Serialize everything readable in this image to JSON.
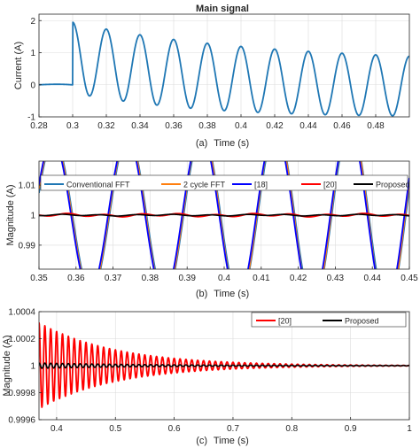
{
  "chart_data": [
    {
      "type": "line",
      "title": "Main signal",
      "xlabel": "Time (s)",
      "ylabel": "Current (A)",
      "caption": "(a)",
      "xlim": [
        0.28,
        0.5
      ],
      "ylim": [
        -1,
        2.2
      ],
      "xticks": [
        "0.28",
        "0.3",
        "0.32",
        "0.34",
        "0.36",
        "0.38",
        "0.4",
        "0.42",
        "0.44",
        "0.46",
        "0.48"
      ],
      "yticks": [
        "2",
        "1",
        "0",
        "-1"
      ],
      "grid": true,
      "series": [
        {
          "color": "#1f77b4",
          "pre_fault": {
            "x_start": 0.28,
            "x_end": 0.3,
            "offset": 0.05,
            "amplitude": 0.1
          },
          "post_fault": {
            "x_start": 0.3,
            "x_end": 0.5,
            "frequency_hz": 50,
            "phase_deg": 0,
            "dc_offset_initial": 1.0,
            "dc_time_constant_s": 0.09,
            "amplitude_initial": 1.1,
            "amplitude_final": 0.93
          }
        }
      ]
    },
    {
      "type": "line",
      "xlabel": "Time (s)",
      "ylabel": "Magnitude (A)",
      "caption": "(b)",
      "xlim": [
        0.35,
        0.45
      ],
      "ylim": [
        0.982,
        1.018
      ],
      "xticks": [
        "0.35",
        "0.36",
        "0.37",
        "0.38",
        "0.39",
        "0.4",
        "0.41",
        "0.42",
        "0.43",
        "0.44",
        "0.45"
      ],
      "yticks": [
        "0.99",
        "1",
        "1.01"
      ],
      "grid": true,
      "legend": "top",
      "series": [
        {
          "name": "Conventional FFT",
          "color": "#1f77b4",
          "amplitude": 0.025,
          "frequency_hz": 50,
          "amp_growth_per_s": 0.25
        },
        {
          "name": "2 cycle FFT",
          "color": "#ff7f0e",
          "amplitude": 0.025,
          "frequency_hz": 50,
          "amp_growth_per_s": 0.3
        },
        {
          "name": "[18]",
          "color": "#0000ff",
          "amplitude": 0.025,
          "frequency_hz": 50,
          "amp_growth_per_s": 0.22
        },
        {
          "name": "[20]",
          "color": "#ff0000",
          "amplitude": 0.0004,
          "frequency_hz": 100
        },
        {
          "name": "Proposed",
          "color": "#000000",
          "amplitude": 0.0002,
          "frequency_hz": 100
        }
      ]
    },
    {
      "type": "line",
      "xlabel": "Time (s)",
      "ylabel": "Magnitude (A)",
      "caption": "(c)",
      "xlim": [
        0.37,
        1.0
      ],
      "ylim": [
        0.9996,
        1.0004
      ],
      "xticks": [
        "0.4",
        "0.5",
        "0.6",
        "0.7",
        "0.8",
        "0.9",
        "1"
      ],
      "yticks": [
        "1.0004",
        "1.0002",
        "1",
        "0.9998",
        "0.9996"
      ],
      "grid": true,
      "legend": "top-right",
      "series": [
        {
          "name": "[20]",
          "color": "#ff0000",
          "frequency_hz": 100,
          "amplitude_initial": 0.00032,
          "decay_time_constant_s": 0.13
        },
        {
          "name": "Proposed",
          "color": "#000000",
          "frequency_hz": 100,
          "amplitude_initial": 2e-05,
          "decay_time_constant_s": 0.2
        }
      ]
    }
  ]
}
